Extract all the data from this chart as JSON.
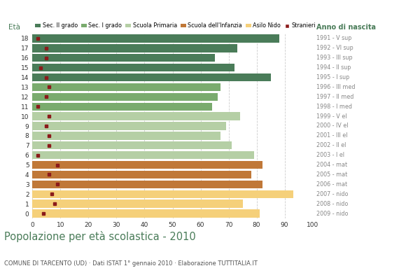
{
  "ages": [
    18,
    17,
    16,
    15,
    14,
    13,
    12,
    11,
    10,
    9,
    8,
    7,
    6,
    5,
    4,
    3,
    2,
    1,
    0
  ],
  "years": [
    "1991 - V sup",
    "1992 - VI sup",
    "1993 - III sup",
    "1994 - II sup",
    "1995 - I sup",
    "1996 - III med",
    "1997 - II med",
    "1998 - I med",
    "1999 - V el",
    "2000 - IV el",
    "2001 - III el",
    "2002 - II el",
    "2003 - I el",
    "2004 - mat",
    "2005 - mat",
    "2006 - mat",
    "2007 - nido",
    "2008 - nido",
    "2009 - nido"
  ],
  "bar_values": [
    88,
    73,
    65,
    72,
    85,
    67,
    66,
    64,
    74,
    69,
    67,
    71,
    79,
    82,
    78,
    82,
    93,
    75,
    81
  ],
  "stranieri_values": [
    2,
    5,
    5,
    3,
    5,
    6,
    5,
    2,
    6,
    5,
    6,
    6,
    2,
    9,
    6,
    9,
    7,
    8,
    4
  ],
  "bar_colors": [
    "#4a7c59",
    "#4a7c59",
    "#4a7c59",
    "#4a7c59",
    "#4a7c59",
    "#7aab6e",
    "#7aab6e",
    "#7aab6e",
    "#b5cfa5",
    "#b5cfa5",
    "#b5cfa5",
    "#b5cfa5",
    "#b5cfa5",
    "#c07838",
    "#c07838",
    "#c07838",
    "#f5d07a",
    "#f5d07a",
    "#f5d07a"
  ],
  "legend_labels": [
    "Sec. II grado",
    "Sec. I grado",
    "Scuola Primaria",
    "Scuola dell'Infanzia",
    "Asilo Nido",
    "Stranieri"
  ],
  "legend_colors": [
    "#4a7c59",
    "#7aab6e",
    "#b5cfa5",
    "#c07838",
    "#f5d07a",
    "#8b1a1a"
  ],
  "stranieri_color": "#8b1a1a",
  "title": "Popolazione per età scolastica - 2010",
  "subtitle": "COMUNE DI TARCENTO (UD) · Dati ISTAT 1° gennaio 2010 · Elaborazione TUTTITALIA.IT",
  "label_eta": "Età",
  "label_anno": "Anno di nascita",
  "xlim": [
    0,
    100
  ],
  "xticks": [
    0,
    10,
    20,
    30,
    40,
    50,
    60,
    70,
    80,
    90,
    100
  ],
  "bg_color": "#ffffff",
  "bar_height": 0.82,
  "grid_color": "#cccccc",
  "tick_color": "#888888",
  "year_label_color": "#888888",
  "title_color": "#4a7c59",
  "subtitle_color": "#555555",
  "eta_color": "#4a7c59",
  "anno_color": "#4a7c59"
}
